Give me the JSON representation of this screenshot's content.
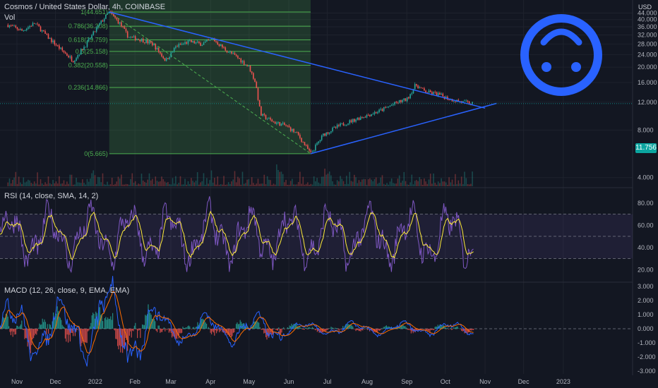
{
  "header": {
    "title": "Cosmos / United States Dollar, 4h, COINBASE",
    "vol_label": "Vol",
    "rsi_label": "RSI (14, close, SMA, 14, 2)",
    "macd_label": "MACD (12, 26, close, 9, EMA, EMA)"
  },
  "axis": {
    "currency": "USD",
    "last_price": "11.756",
    "x_labels": [
      "Nov",
      "Dec",
      "2022",
      "Feb",
      "Mar",
      "Apr",
      "May",
      "Jun",
      "Jul",
      "Aug",
      "Sep",
      "Oct",
      "Nov",
      "Dec",
      "2023"
    ]
  },
  "colors": {
    "background": "#131722",
    "up": "#26a69a",
    "down": "#ef5350",
    "trendline": "#2962ff",
    "fib": "#4caf50",
    "rsi": "#7e57c2",
    "rsi_ma": "#ffeb3b",
    "macd": "#2962ff",
    "signal": "#ff6d00",
    "face": "#2962ff"
  },
  "icon": "upside-down-smiley-icon",
  "chart_data": [
    {
      "type": "candlestick",
      "yscale": "log",
      "ylim": [
        3.6,
        48
      ],
      "yticks": [
        "44.000",
        "40.000",
        "36.000",
        "32.000",
        "28.000",
        "24.000",
        "20.000",
        "16.000",
        "12.000",
        "8.000",
        "4.000"
      ],
      "price_path": [
        {
          "x": "Oct 25",
          "y": 37
        },
        {
          "x": "Nov 5",
          "y": 34
        },
        {
          "x": "Nov 15",
          "y": 38
        },
        {
          "x": "Nov 25",
          "y": 31
        },
        {
          "x": "Dec 5",
          "y": 26
        },
        {
          "x": "Dec 15",
          "y": 22
        },
        {
          "x": "Dec 25",
          "y": 28
        },
        {
          "x": "Jan 5",
          "y": 38
        },
        {
          "x": "Jan 12",
          "y": 44.651
        },
        {
          "x": "Jan 20",
          "y": 38
        },
        {
          "x": "Jan 27",
          "y": 31
        },
        {
          "x": "Feb 5",
          "y": 30
        },
        {
          "x": "Feb 15",
          "y": 28
        },
        {
          "x": "Feb 25",
          "y": 22
        },
        {
          "x": "Mar 5",
          "y": 27
        },
        {
          "x": "Mar 15",
          "y": 29
        },
        {
          "x": "Mar 25",
          "y": 28
        },
        {
          "x": "Apr 3",
          "y": 30
        },
        {
          "x": "Apr 12",
          "y": 26
        },
        {
          "x": "Apr 22",
          "y": 23
        },
        {
          "x": "May 1",
          "y": 20
        },
        {
          "x": "May 6",
          "y": 16
        },
        {
          "x": "May 10",
          "y": 10
        },
        {
          "x": "May 20",
          "y": 9
        },
        {
          "x": "May 30",
          "y": 8.5
        },
        {
          "x": "Jun 8",
          "y": 7.5
        },
        {
          "x": "Jun 18",
          "y": 5.665
        },
        {
          "x": "Jun 28",
          "y": 7.5
        },
        {
          "x": "Jul 10",
          "y": 8.5
        },
        {
          "x": "Jul 25",
          "y": 9.5
        },
        {
          "x": "Aug 10",
          "y": 10.5
        },
        {
          "x": "Aug 25",
          "y": 12
        },
        {
          "x": "Sep 1",
          "y": 12.5
        },
        {
          "x": "Sep 8",
          "y": 15.5
        },
        {
          "x": "Sep 15",
          "y": 14
        },
        {
          "x": "Sep 25",
          "y": 13.5
        },
        {
          "x": "Oct 5",
          "y": 12.5
        },
        {
          "x": "Oct 15",
          "y": 12
        },
        {
          "x": "Oct 23",
          "y": 11.756
        }
      ],
      "fib_levels": [
        {
          "label": "1(44.651)",
          "value": 44.651
        },
        {
          "label": "0.786(36.308)",
          "value": 36.308
        },
        {
          "label": "0.618(29.759)",
          "value": 29.759
        },
        {
          "label": "0.5(25.158)",
          "value": 25.158
        },
        {
          "label": "0.382(20.558)",
          "value": 20.558
        },
        {
          "label": "0.236(14.866)",
          "value": 14.866
        },
        {
          "label": "0(5.665)",
          "value": 5.665
        }
      ],
      "trendlines": [
        {
          "from": {
            "x": "Jan 12",
            "y": 44.651
          },
          "to": {
            "x": "Nov 1",
            "y": 11.0
          }
        },
        {
          "from": {
            "x": "Jun 18",
            "y": 5.665
          },
          "to": {
            "x": "Nov 10",
            "y": 11.8
          }
        }
      ]
    },
    {
      "type": "line",
      "name": "RSI",
      "ylim": [
        10,
        90
      ],
      "yticks": [
        "80.00",
        "60.00",
        "40.00",
        "20.00"
      ],
      "bands": [
        30,
        50,
        70
      ]
    },
    {
      "type": "bar",
      "name": "MACD",
      "ylim": [
        -3.2,
        3.2
      ],
      "yticks": [
        "3.000",
        "2.000",
        "1.000",
        "0.000",
        "-1.000",
        "-2.000",
        "-3.000"
      ]
    }
  ]
}
